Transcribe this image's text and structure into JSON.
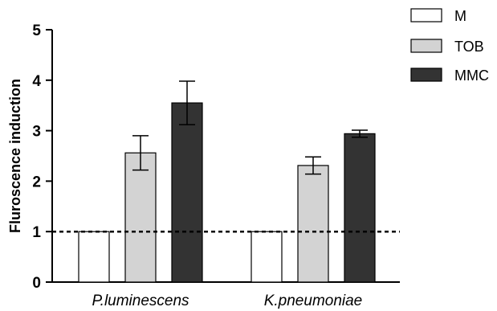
{
  "chart_data": {
    "type": "bar",
    "ylabel": "Fluroscence induction",
    "xlabel": "",
    "ylim": [
      0,
      5
    ],
    "yticks": [
      0,
      1,
      2,
      3,
      4,
      5
    ],
    "categories": [
      "P.luminescens",
      "K.pneumoniae"
    ],
    "series": [
      {
        "name": "M",
        "values": [
          1.0,
          1.0
        ],
        "errors": [
          0,
          0
        ],
        "color": "#ffffff"
      },
      {
        "name": "TOB",
        "values": [
          2.56,
          2.31
        ],
        "errors": [
          0.34,
          0.17
        ],
        "color": "#d3d3d3"
      },
      {
        "name": "MMC",
        "values": [
          3.55,
          2.94
        ],
        "errors": [
          0.43,
          0.07
        ],
        "color": "#333333"
      }
    ],
    "reference_line": {
      "y": 1,
      "style": "dashed"
    },
    "legend_position": "top-right",
    "grid": false
  }
}
